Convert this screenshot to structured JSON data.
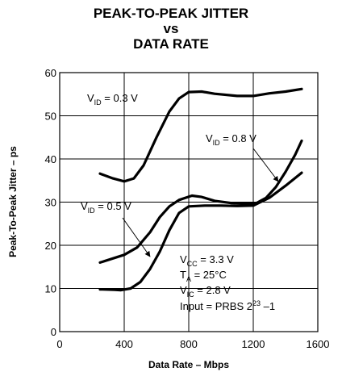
{
  "chart_data": {
    "type": "line",
    "title_lines": [
      "PEAK-TO-PEAK JITTER",
      "vs",
      "DATA RATE"
    ],
    "xlabel": "Data Rate – Mbps",
    "ylabel": "Peak-To-Peak Jitter – ps",
    "xlim": [
      0,
      1600
    ],
    "ylim": [
      0,
      60
    ],
    "x_ticks": [
      0,
      400,
      800,
      1200,
      1600
    ],
    "y_ticks": [
      0,
      10,
      20,
      30,
      40,
      50,
      60
    ],
    "grid": true,
    "series": [
      {
        "name": "V_ID = 0.3 V",
        "points": [
          [
            250,
            36.6
          ],
          [
            330,
            35.5
          ],
          [
            400,
            34.8
          ],
          [
            460,
            35.5
          ],
          [
            520,
            38.5
          ],
          [
            600,
            45
          ],
          [
            680,
            51
          ],
          [
            740,
            54
          ],
          [
            800,
            55.5
          ],
          [
            880,
            55.6
          ],
          [
            960,
            55.1
          ],
          [
            1100,
            54.6
          ],
          [
            1200,
            54.6
          ],
          [
            1300,
            55.2
          ],
          [
            1400,
            55.6
          ],
          [
            1500,
            56.2
          ]
        ]
      },
      {
        "name": "V_ID = 0.8 V",
        "points": [
          [
            250,
            16
          ],
          [
            400,
            17.8
          ],
          [
            480,
            19.5
          ],
          [
            560,
            23
          ],
          [
            620,
            26.5
          ],
          [
            680,
            29
          ],
          [
            740,
            30.5
          ],
          [
            820,
            31.5
          ],
          [
            880,
            31.2
          ],
          [
            960,
            30.3
          ],
          [
            1060,
            29.8
          ],
          [
            1150,
            29.6
          ],
          [
            1220,
            29.8
          ],
          [
            1280,
            31
          ],
          [
            1340,
            33.5
          ],
          [
            1400,
            37
          ],
          [
            1460,
            41
          ],
          [
            1500,
            44.2
          ]
        ]
      },
      {
        "name": "V_ID = 0.5 V",
        "points": [
          [
            250,
            9.8
          ],
          [
            340,
            9.7
          ],
          [
            380,
            9.6
          ],
          [
            440,
            10
          ],
          [
            500,
            11.5
          ],
          [
            560,
            14.5
          ],
          [
            620,
            18.5
          ],
          [
            680,
            23.5
          ],
          [
            740,
            27.5
          ],
          [
            800,
            29
          ],
          [
            900,
            29.2
          ],
          [
            1000,
            29.2
          ],
          [
            1100,
            29.1
          ],
          [
            1200,
            29.2
          ],
          [
            1300,
            31
          ],
          [
            1400,
            33.8
          ],
          [
            1500,
            36.8
          ]
        ]
      }
    ],
    "annotations": [
      {
        "prefix": "V",
        "sub": "ID",
        "suffix": " = 0.3 V"
      },
      {
        "prefix": "V",
        "sub": "ID",
        "suffix": " = 0.8 V"
      },
      {
        "prefix": "V",
        "sub": "ID",
        "suffix": " = 0.5 V"
      }
    ],
    "conditions": [
      {
        "prefix": "V",
        "sub": "CC",
        "suffix": " = 3.3 V"
      },
      {
        "prefix": "T",
        "sub": "A",
        "suffix": " = 25°C"
      },
      {
        "prefix": "V",
        "sub": "IC",
        "suffix": " = 2.8 V"
      },
      {
        "prefix": "Input = PRBS 2",
        "sup": "23",
        "suffix": " –1"
      }
    ]
  }
}
